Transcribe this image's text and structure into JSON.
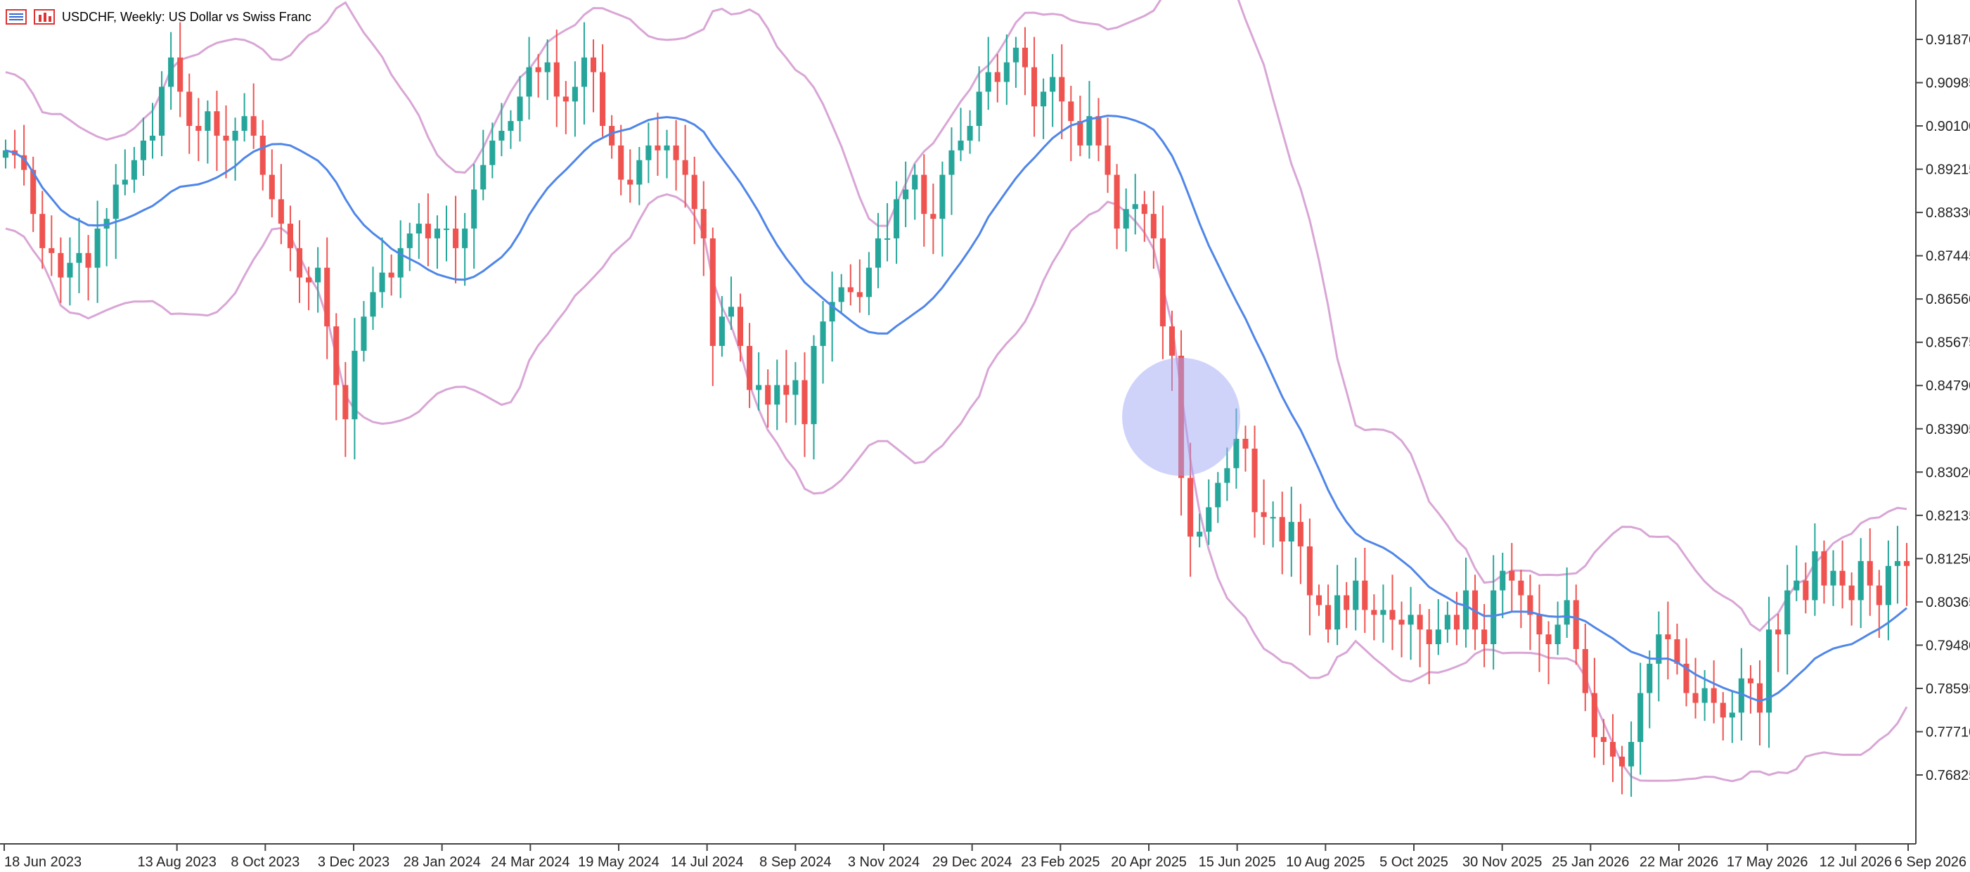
{
  "header": {
    "title": "USDCHF, Weekly:  US Dollar vs Swiss Franc",
    "icons": [
      "list-icon",
      "bar-chart-icon"
    ]
  },
  "colors": {
    "bull": "#26a69a",
    "bear": "#ef5350",
    "ma": "#4f86e8",
    "band": "#d9a6d6",
    "highlight": "#9fa8f5",
    "axis": "#444444"
  },
  "chart_data": {
    "type": "candlestick",
    "symbol": "USDCHF",
    "timeframe": "Weekly",
    "y_ticks": [
      "0.91870",
      "0.90985",
      "0.90100",
      "0.89215",
      "0.88330",
      "0.87445",
      "0.86560",
      "0.85675",
      "0.84790",
      "0.83905",
      "0.83020",
      "0.82135",
      "0.81250",
      "0.80365",
      "0.79480",
      "0.78595",
      "0.77710",
      "0.76825"
    ],
    "x_ticks": [
      "18 Jun 2023",
      "13 Aug 2023",
      "8 Oct 2023",
      "3 Dec 2023",
      "28 Jan 2024",
      "24 Mar 2024",
      "19 May 2024",
      "14 Jul 2024",
      "8 Sep 2024",
      "3 Nov 2024",
      "29 Dec 2024",
      "23 Feb 2025",
      "20 Apr 2025",
      "15 Jun 2025",
      "10 Aug 2025",
      "5 Oct 2025",
      "30 Nov 2025",
      "25 Jan 2026",
      "22 Mar 2026",
      "17 May 2026",
      "12 Jul 2026",
      "6 Sep 2026"
    ],
    "close": [
      0.896,
      0.895,
      0.892,
      0.883,
      0.876,
      0.875,
      0.87,
      0.873,
      0.875,
      0.872,
      0.88,
      0.882,
      0.889,
      0.89,
      0.894,
      0.898,
      0.899,
      0.909,
      0.915,
      0.908,
      0.901,
      0.9,
      0.904,
      0.899,
      0.898,
      0.9,
      0.903,
      0.899,
      0.891,
      0.886,
      0.881,
      0.876,
      0.87,
      0.869,
      0.872,
      0.86,
      0.848,
      0.841,
      0.855,
      0.862,
      0.867,
      0.871,
      0.87,
      0.876,
      0.879,
      0.881,
      0.878,
      0.88,
      0.88,
      0.876,
      0.88,
      0.888,
      0.893,
      0.898,
      0.9,
      0.902,
      0.907,
      0.913,
      0.912,
      0.914,
      0.907,
      0.906,
      0.909,
      0.915,
      0.912,
      0.901,
      0.897,
      0.89,
      0.889,
      0.894,
      0.897,
      0.896,
      0.897,
      0.894,
      0.891,
      0.884,
      0.878,
      0.856,
      0.862,
      0.864,
      0.856,
      0.847,
      0.848,
      0.844,
      0.848,
      0.846,
      0.849,
      0.84,
      0.856,
      0.861,
      0.865,
      0.868,
      0.867,
      0.866,
      0.872,
      0.878,
      0.878,
      0.886,
      0.888,
      0.891,
      0.883,
      0.882,
      0.891,
      0.896,
      0.898,
      0.901,
      0.908,
      0.912,
      0.91,
      0.914,
      0.917,
      0.913,
      0.905,
      0.908,
      0.911,
      0.906,
      0.902,
      0.897,
      0.903,
      0.897,
      0.891,
      0.88,
      0.884,
      0.885,
      0.883,
      0.878,
      0.86,
      0.854,
      0.829,
      0.817,
      0.818,
      0.823,
      0.828,
      0.831,
      0.837,
      0.835,
      0.822,
      0.821,
      0.821,
      0.816,
      0.82,
      0.815,
      0.805,
      0.803,
      0.798,
      0.805,
      0.802,
      0.808,
      0.802,
      0.801,
      0.802,
      0.8,
      0.799,
      0.801,
      0.798,
      0.795,
      0.798,
      0.801,
      0.798,
      0.806,
      0.798,
      0.795,
      0.806,
      0.81,
      0.808,
      0.805,
      0.801,
      0.797,
      0.795,
      0.799,
      0.804,
      0.794,
      0.785,
      0.776,
      0.775,
      0.772,
      0.77,
      0.775,
      0.785,
      0.791,
      0.797,
      0.796,
      0.791,
      0.785,
      0.783,
      0.786,
      0.783,
      0.78,
      0.781,
      0.788,
      0.787,
      0.781,
      0.798,
      0.797,
      0.806,
      0.808,
      0.804,
      0.814,
      0.807,
      0.81,
      0.807,
      0.804,
      0.812,
      0.807,
      0.803,
      0.811,
      0.812,
      0.811
    ],
    "ma_period": 20,
    "bands_deviation": 2,
    "highlight": {
      "date": "9 Mar 2025",
      "shape": "circle"
    },
    "grid": false
  }
}
